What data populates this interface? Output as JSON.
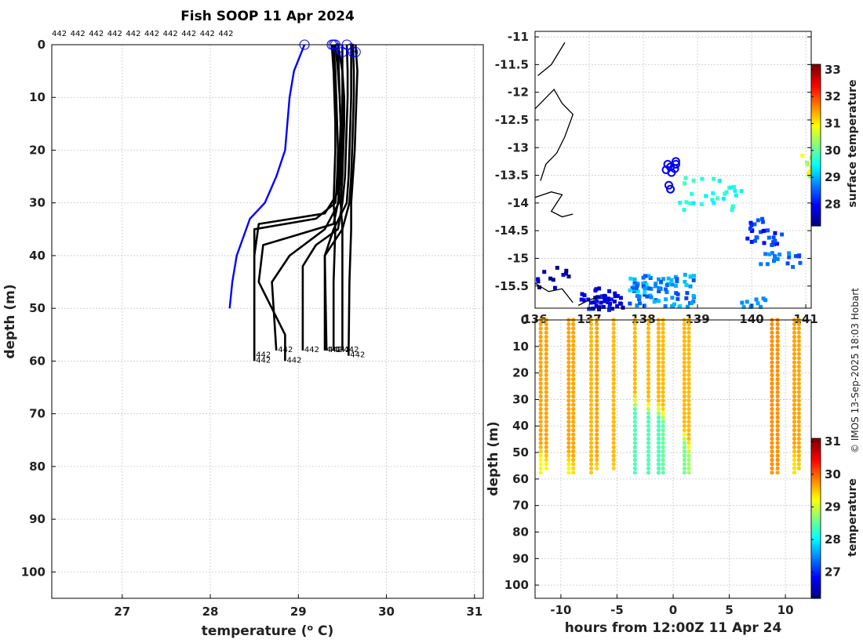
{
  "title": "Fish SOOP 11 Apr 2024",
  "credit": "© IMOS 13-Sep-2025 18:03 Hobart",
  "chart_data": [
    {
      "type": "line",
      "name": "profiles",
      "xlabel": "temperature (",
      "xlabel_sup": "o",
      "xlabel_unit": " C)",
      "ylabel": "depth (m)",
      "xlim": [
        26.2,
        31.1
      ],
      "ylim": [
        0,
        105
      ],
      "xticks": [
        27,
        28,
        29,
        30,
        31
      ],
      "yticks": [
        0,
        10,
        20,
        30,
        40,
        50,
        60,
        70,
        80,
        90,
        100
      ],
      "top_label": "442",
      "top_label_count": 10,
      "end_label": "442",
      "reference_profile": {
        "color": "#0000ff",
        "temp": [
          29.07,
          28.95,
          28.9,
          28.85,
          28.75,
          28.62,
          28.45,
          28.3,
          28.25,
          28.22
        ],
        "depth": [
          0,
          5,
          10,
          20,
          25,
          30,
          33,
          40,
          45,
          50
        ]
      },
      "series": [
        {
          "temp": [
            29.4,
            29.42,
            29.43,
            29.44,
            29.45,
            29.44,
            29.43,
            29.42,
            29.2,
            28.5,
            28.5,
            28.5
          ],
          "depth": [
            0,
            5,
            10,
            15,
            20,
            25,
            28,
            30,
            33,
            35,
            45,
            60
          ]
        },
        {
          "temp": [
            29.45,
            29.46,
            29.47,
            29.48,
            29.47,
            29.46,
            29.45,
            29.3,
            28.55,
            28.5,
            28.5
          ],
          "depth": [
            0,
            5,
            10,
            15,
            20,
            25,
            28,
            32,
            34,
            40,
            59
          ]
        },
        {
          "temp": [
            29.5,
            29.5,
            29.5,
            29.5,
            29.49,
            29.48,
            29.45,
            29.4,
            29.0,
            28.6,
            28.55,
            28.85,
            28.85
          ],
          "depth": [
            0,
            5,
            10,
            15,
            20,
            25,
            30,
            34,
            36,
            38,
            45,
            55,
            60
          ]
        },
        {
          "temp": [
            29.55,
            29.56,
            29.56,
            29.55,
            29.54,
            29.53,
            29.5,
            29.45,
            29.2,
            29.05,
            29.05
          ],
          "depth": [
            0,
            5,
            10,
            15,
            20,
            25,
            30,
            35,
            38,
            42,
            58
          ]
        },
        {
          "temp": [
            29.6,
            29.6,
            29.6,
            29.59,
            29.58,
            29.57,
            29.55,
            29.4,
            29.3,
            29.3
          ],
          "depth": [
            0,
            5,
            10,
            15,
            20,
            25,
            30,
            35,
            40,
            58
          ]
        },
        {
          "temp": [
            29.62,
            29.63,
            29.63,
            29.62,
            29.61,
            29.6,
            29.58,
            29.5,
            29.3,
            29.32
          ],
          "depth": [
            0,
            5,
            10,
            15,
            20,
            25,
            30,
            35,
            40,
            58
          ]
        },
        {
          "temp": [
            29.38,
            29.4,
            29.41,
            29.42,
            29.42,
            29.41,
            29.4,
            29.42,
            29.4,
            29.4
          ],
          "depth": [
            0,
            5,
            10,
            15,
            20,
            25,
            30,
            35,
            45,
            58
          ]
        },
        {
          "temp": [
            29.45,
            29.5,
            29.52,
            29.52,
            29.51,
            29.5,
            29.48,
            29.5,
            29.5,
            29.5
          ],
          "depth": [
            0,
            5,
            10,
            15,
            20,
            25,
            30,
            35,
            45,
            58
          ]
        },
        {
          "temp": [
            29.65,
            29.67,
            29.66,
            29.65,
            29.64,
            29.62,
            29.6,
            29.6,
            29.58,
            29.57
          ],
          "depth": [
            0,
            5,
            10,
            15,
            20,
            25,
            30,
            35,
            45,
            59
          ]
        },
        {
          "temp": [
            29.42,
            29.45,
            29.47,
            29.48,
            29.48,
            29.47,
            29.46,
            29.3,
            28.9,
            28.7,
            28.75
          ],
          "depth": [
            0,
            5,
            10,
            15,
            20,
            25,
            30,
            35,
            40,
            45,
            58
          ]
        }
      ]
    },
    {
      "type": "heatmap",
      "name": "map",
      "xlim": [
        136,
        141.1
      ],
      "ylim": [
        -15.9,
        -10.9
      ],
      "xticks": [
        136,
        137,
        138,
        139,
        140,
        141
      ],
      "xtick_labels": [
        "136",
        "137",
        "138",
        "139",
        "140",
        "141"
      ],
      "yticks": [
        -11,
        -11.5,
        -12,
        -12.5,
        -13,
        -13.5,
        -14,
        -14.5,
        -15,
        -15.5
      ],
      "yticks_labels": [
        "-11",
        "-11.5",
        "-12",
        "-12.5",
        "-13",
        "-13.5",
        "-14",
        "-14.5",
        "-15",
        "-15.5"
      ],
      "clim": [
        27.2,
        33.2
      ],
      "colorbar_ticks": [
        28,
        29,
        30,
        31,
        32,
        33
      ],
      "colorbar_label": "surface temperature",
      "stations_lonlat": [
        [
          138.45,
          -13.3
        ],
        [
          138.5,
          -13.35
        ],
        [
          138.42,
          -13.4
        ],
        [
          138.52,
          -13.45
        ],
        [
          138.6,
          -13.3
        ],
        [
          138.58,
          -13.38
        ],
        [
          138.47,
          -13.68
        ],
        [
          138.5,
          -13.75
        ],
        [
          138.6,
          -13.25
        ]
      ]
    },
    {
      "type": "scatter",
      "name": "section",
      "xlabel": "hours from 12:00Z 11 Apr 24",
      "ylabel": "depth (m)",
      "xlim": [
        -12.3,
        12.3
      ],
      "ylim": [
        0,
        105
      ],
      "xticks": [
        -10,
        -5,
        0,
        5,
        10
      ],
      "yticks": [
        0,
        10,
        20,
        30,
        40,
        50,
        60,
        70,
        80,
        90,
        100
      ],
      "clim": [
        26.2,
        31.1
      ],
      "colorbar_ticks": [
        27,
        28,
        29,
        30,
        31
      ],
      "colorbar_label": "temperature",
      "casts": [
        {
          "hour": -11.8,
          "max_depth": 58,
          "surface_temp": 29.7,
          "bottom_temp": 29.2,
          "thermocline": 50
        },
        {
          "hour": -11.3,
          "max_depth": 57,
          "surface_temp": 29.7,
          "bottom_temp": 29.3,
          "thermocline": 52
        },
        {
          "hour": -9.3,
          "max_depth": 58,
          "surface_temp": 29.7,
          "bottom_temp": 29.3,
          "thermocline": 52
        },
        {
          "hour": -8.9,
          "max_depth": 58,
          "surface_temp": 29.7,
          "bottom_temp": 29.4,
          "thermocline": 54
        },
        {
          "hour": -7.3,
          "max_depth": 58,
          "surface_temp": 29.6,
          "bottom_temp": 29.5,
          "thermocline": 56
        },
        {
          "hour": -6.8,
          "max_depth": 57,
          "surface_temp": 29.7,
          "bottom_temp": 29.4,
          "thermocline": 54
        },
        {
          "hour": -5.3,
          "max_depth": 57,
          "surface_temp": 29.6,
          "bottom_temp": 29.4,
          "thermocline": 55
        },
        {
          "hour": -3.4,
          "max_depth": 59,
          "surface_temp": 29.6,
          "bottom_temp": 28.4,
          "thermocline": 31
        },
        {
          "hour": -2.2,
          "max_depth": 59,
          "surface_temp": 29.6,
          "bottom_temp": 28.4,
          "thermocline": 33
        },
        {
          "hour": -1.3,
          "max_depth": 59,
          "surface_temp": 29.6,
          "bottom_temp": 28.4,
          "thermocline": 34
        },
        {
          "hour": -0.9,
          "max_depth": 58,
          "surface_temp": 29.6,
          "bottom_temp": 28.5,
          "thermocline": 36
        },
        {
          "hour": 1.0,
          "max_depth": 59,
          "surface_temp": 29.6,
          "bottom_temp": 28.6,
          "thermocline": 44
        },
        {
          "hour": 1.4,
          "max_depth": 58,
          "surface_temp": 29.6,
          "bottom_temp": 28.8,
          "thermocline": 48
        },
        {
          "hour": 8.8,
          "max_depth": 59,
          "surface_temp": 29.8,
          "bottom_temp": 29.7,
          "thermocline": 58
        },
        {
          "hour": 9.3,
          "max_depth": 58,
          "surface_temp": 29.8,
          "bottom_temp": 29.6,
          "thermocline": 58
        },
        {
          "hour": 10.8,
          "max_depth": 58,
          "surface_temp": 29.7,
          "bottom_temp": 29.4,
          "thermocline": 50
        },
        {
          "hour": 11.2,
          "max_depth": 57,
          "surface_temp": 29.7,
          "bottom_temp": 29.5,
          "thermocline": 52
        }
      ]
    }
  ]
}
